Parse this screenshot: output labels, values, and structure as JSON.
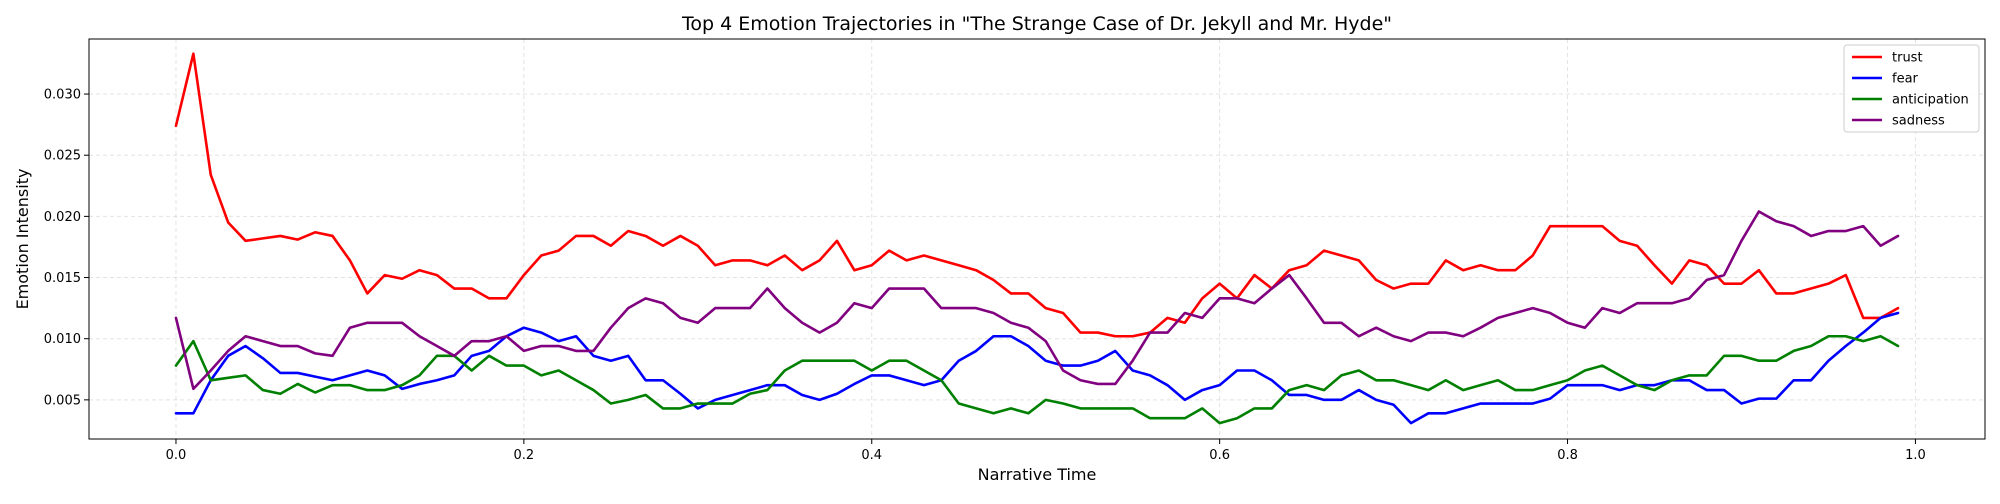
{
  "chart_data": {
    "type": "line",
    "title": "Top 4 Emotion Trajectories in \"The Strange Case of Dr. Jekyll and Mr. Hyde\"",
    "xlabel": "Narrative Time",
    "ylabel": "Emotion Intensity",
    "xlim": [
      -0.05,
      1.04
    ],
    "ylim": [
      0.0018,
      0.0345
    ],
    "xticks": [
      0.0,
      0.2,
      0.4,
      0.6,
      0.8,
      1.0
    ],
    "xtick_labels": [
      "0.0",
      "0.2",
      "0.4",
      "0.6",
      "0.8",
      "1.0"
    ],
    "yticks": [
      0.005,
      0.01,
      0.015,
      0.02,
      0.025,
      0.03
    ],
    "ytick_labels": [
      "0.005",
      "0.010",
      "0.015",
      "0.020",
      "0.025",
      "0.030"
    ],
    "grid": true,
    "legend_position": "top-right",
    "x": [
      0.0,
      0.01,
      0.02,
      0.03,
      0.04,
      0.05,
      0.06,
      0.07,
      0.08,
      0.09,
      0.1,
      0.11,
      0.12,
      0.13,
      0.14,
      0.15,
      0.16,
      0.17,
      0.18,
      0.19,
      0.2,
      0.21,
      0.22,
      0.23,
      0.24,
      0.25,
      0.26,
      0.27,
      0.28,
      0.29,
      0.3,
      0.31,
      0.32,
      0.33,
      0.34,
      0.35,
      0.36,
      0.37,
      0.38,
      0.39,
      0.4,
      0.41,
      0.42,
      0.43,
      0.44,
      0.45,
      0.46,
      0.47,
      0.48,
      0.49,
      0.5,
      0.51,
      0.52,
      0.53,
      0.54,
      0.55,
      0.56,
      0.57,
      0.58,
      0.59,
      0.6,
      0.61,
      0.62,
      0.63,
      0.64,
      0.65,
      0.66,
      0.67,
      0.68,
      0.69,
      0.7,
      0.71,
      0.72,
      0.73,
      0.74,
      0.75,
      0.76,
      0.77,
      0.78,
      0.79,
      0.8,
      0.81,
      0.82,
      0.83,
      0.84,
      0.85,
      0.86,
      0.87,
      0.88,
      0.89,
      0.9,
      0.91,
      0.92,
      0.93,
      0.94,
      0.95,
      0.96,
      0.97,
      0.98,
      0.99
    ],
    "series": [
      {
        "name": "trust",
        "color": "#ff0000",
        "values": [
          0.0274,
          0.0333,
          0.0234,
          0.0195,
          0.018,
          0.0182,
          0.0184,
          0.0181,
          0.0187,
          0.0184,
          0.0164,
          0.0137,
          0.0152,
          0.0149,
          0.0156,
          0.0152,
          0.0141,
          0.0141,
          0.0133,
          0.0133,
          0.0152,
          0.0168,
          0.0172,
          0.0184,
          0.0184,
          0.0176,
          0.0188,
          0.0184,
          0.0176,
          0.0184,
          0.0176,
          0.016,
          0.0164,
          0.0164,
          0.016,
          0.0168,
          0.0156,
          0.0164,
          0.018,
          0.0156,
          0.016,
          0.0172,
          0.0164,
          0.0168,
          0.0164,
          0.016,
          0.0156,
          0.0148,
          0.0137,
          0.0137,
          0.0125,
          0.0121,
          0.0105,
          0.0105,
          0.0102,
          0.0102,
          0.0105,
          0.0117,
          0.0113,
          0.0133,
          0.0145,
          0.0133,
          0.0152,
          0.0141,
          0.0156,
          0.016,
          0.0172,
          0.0168,
          0.0164,
          0.0148,
          0.0141,
          0.0145,
          0.0145,
          0.0164,
          0.0156,
          0.016,
          0.0156,
          0.0156,
          0.0168,
          0.0192,
          0.0192,
          0.0192,
          0.0192,
          0.018,
          0.0176,
          0.016,
          0.0145,
          0.0164,
          0.016,
          0.0145,
          0.0145,
          0.0156,
          0.0137,
          0.0137,
          0.0141,
          0.0145,
          0.0152,
          0.0117,
          0.0117,
          0.0125
        ]
      },
      {
        "name": "fear",
        "color": "#0000ff",
        "values": [
          0.0039,
          0.0039,
          0.0066,
          0.0086,
          0.0094,
          0.0084,
          0.0072,
          0.0072,
          0.0069,
          0.0066,
          0.007,
          0.0074,
          0.007,
          0.0059,
          0.0063,
          0.0066,
          0.007,
          0.0086,
          0.009,
          0.0102,
          0.0109,
          0.0105,
          0.0098,
          0.0102,
          0.0086,
          0.0082,
          0.0086,
          0.0066,
          0.0066,
          0.0055,
          0.0043,
          0.005,
          0.0054,
          0.0058,
          0.0062,
          0.0062,
          0.0054,
          0.005,
          0.0055,
          0.0063,
          0.007,
          0.007,
          0.0066,
          0.0062,
          0.0066,
          0.0082,
          0.009,
          0.0102,
          0.0102,
          0.0094,
          0.0082,
          0.0078,
          0.0078,
          0.0082,
          0.009,
          0.0074,
          0.007,
          0.0062,
          0.005,
          0.0058,
          0.0062,
          0.0074,
          0.0074,
          0.0066,
          0.0054,
          0.0054,
          0.005,
          0.005,
          0.0058,
          0.005,
          0.0046,
          0.0031,
          0.0039,
          0.0039,
          0.0043,
          0.0047,
          0.0047,
          0.0047,
          0.0047,
          0.0051,
          0.0062,
          0.0062,
          0.0062,
          0.0058,
          0.0062,
          0.0062,
          0.0066,
          0.0066,
          0.0058,
          0.0058,
          0.0047,
          0.0051,
          0.0051,
          0.0066,
          0.0066,
          0.0082,
          0.0094,
          0.0105,
          0.0117,
          0.0121
        ]
      },
      {
        "name": "anticipation",
        "color": "#008000",
        "values": [
          0.0078,
          0.0098,
          0.0066,
          0.0068,
          0.007,
          0.0058,
          0.0055,
          0.0063,
          0.0056,
          0.0062,
          0.0062,
          0.0058,
          0.0058,
          0.0062,
          0.007,
          0.0086,
          0.0086,
          0.0074,
          0.0086,
          0.0078,
          0.0078,
          0.007,
          0.0074,
          0.0066,
          0.0058,
          0.0047,
          0.005,
          0.0054,
          0.0043,
          0.0043,
          0.0047,
          0.0047,
          0.0047,
          0.0055,
          0.0058,
          0.0074,
          0.0082,
          0.0082,
          0.0082,
          0.0082,
          0.0074,
          0.0082,
          0.0082,
          0.0074,
          0.0066,
          0.0047,
          0.0043,
          0.0039,
          0.0043,
          0.0039,
          0.005,
          0.0047,
          0.0043,
          0.0043,
          0.0043,
          0.0043,
          0.0035,
          0.0035,
          0.0035,
          0.0043,
          0.0031,
          0.0035,
          0.0043,
          0.0043,
          0.0058,
          0.0062,
          0.0058,
          0.007,
          0.0074,
          0.0066,
          0.0066,
          0.0062,
          0.0058,
          0.0066,
          0.0058,
          0.0062,
          0.0066,
          0.0058,
          0.0058,
          0.0062,
          0.0066,
          0.0074,
          0.0078,
          0.007,
          0.0062,
          0.0058,
          0.0066,
          0.007,
          0.007,
          0.0086,
          0.0086,
          0.0082,
          0.0082,
          0.009,
          0.0094,
          0.0102,
          0.0102,
          0.0098,
          0.0102,
          0.0094
        ]
      },
      {
        "name": "sadness",
        "color": "#800080",
        "values": [
          0.0117,
          0.0059,
          0.0074,
          0.009,
          0.0102,
          0.0098,
          0.0094,
          0.0094,
          0.0088,
          0.0086,
          0.0109,
          0.0113,
          0.0113,
          0.0113,
          0.0102,
          0.0094,
          0.0086,
          0.0098,
          0.0098,
          0.0102,
          0.009,
          0.0094,
          0.0094,
          0.009,
          0.009,
          0.0109,
          0.0125,
          0.0133,
          0.0129,
          0.0117,
          0.0113,
          0.0125,
          0.0125,
          0.0125,
          0.0141,
          0.0125,
          0.0113,
          0.0105,
          0.0113,
          0.0129,
          0.0125,
          0.0141,
          0.0141,
          0.0141,
          0.0125,
          0.0125,
          0.0125,
          0.0121,
          0.0113,
          0.0109,
          0.0098,
          0.0074,
          0.0066,
          0.0063,
          0.0063,
          0.0082,
          0.0105,
          0.0105,
          0.0121,
          0.0117,
          0.0133,
          0.0133,
          0.0129,
          0.0141,
          0.0152,
          0.0133,
          0.0113,
          0.0113,
          0.0102,
          0.0109,
          0.0102,
          0.0098,
          0.0105,
          0.0105,
          0.0102,
          0.0109,
          0.0117,
          0.0121,
          0.0125,
          0.0121,
          0.0113,
          0.0109,
          0.0125,
          0.0121,
          0.0129,
          0.0129,
          0.0129,
          0.0133,
          0.0148,
          0.0152,
          0.018,
          0.0204,
          0.0196,
          0.0192,
          0.0184,
          0.0188,
          0.0188,
          0.0192,
          0.0176,
          0.0184
        ]
      }
    ]
  }
}
